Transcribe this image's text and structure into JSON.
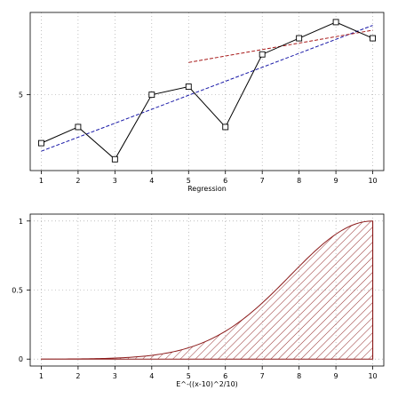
{
  "chart_data": [
    {
      "type": "line",
      "xlabel": "Regression",
      "ylabel": "",
      "xlim": [
        0.7,
        10.3
      ],
      "ylim": [
        0.3,
        10.1
      ],
      "xticks": [
        1,
        2,
        3,
        4,
        5,
        6,
        7,
        8,
        9,
        10
      ],
      "yticks": [
        5
      ],
      "grid": true,
      "series": [
        {
          "kind": "data",
          "color": "#000000",
          "marker": "open-square",
          "x": [
            1,
            2,
            3,
            4,
            5,
            6,
            7,
            8,
            9,
            10
          ],
          "values": [
            2.0,
            3.0,
            1.0,
            5.0,
            5.5,
            3.0,
            7.5,
            8.5,
            9.5,
            8.5
          ]
        },
        {
          "kind": "regression",
          "color": "#1a1aa8",
          "style": "dashed",
          "x": [
            1,
            10
          ],
          "values": [
            1.5,
            9.3
          ]
        },
        {
          "kind": "regression",
          "color": "#a81a1a",
          "style": "dashed",
          "x": [
            5,
            10
          ],
          "values": [
            7.0,
            9.0
          ]
        }
      ]
    },
    {
      "type": "area",
      "xlabel": "E^-((x-10)^2/10)",
      "ylabel": "",
      "xlim": [
        0.7,
        10.3
      ],
      "ylim": [
        -0.05,
        1.05
      ],
      "xticks": [
        1,
        2,
        3,
        4,
        5,
        6,
        7,
        8,
        9,
        10
      ],
      "yticks": [
        0,
        0.5,
        1
      ],
      "ytick_labels": [
        "0",
        "0.5",
        "1"
      ],
      "grid": true,
      "fill": "hatched",
      "color": "#8b1a1a",
      "function": "exp(-((x-10)^2/10))",
      "x": [
        1,
        2,
        3,
        4,
        5,
        6,
        7,
        8,
        9,
        10
      ],
      "values": [
        0.0003,
        0.0017,
        0.0074,
        0.0273,
        0.0821,
        0.2019,
        0.4066,
        0.6703,
        0.9048,
        1.0
      ]
    }
  ]
}
